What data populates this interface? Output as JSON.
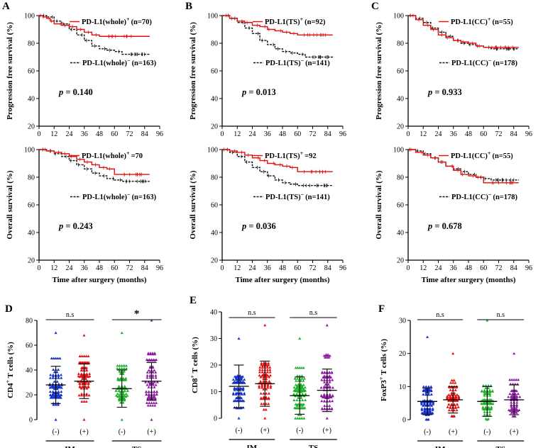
{
  "km_panels": [
    {
      "letter": "A",
      "x0": 55,
      "y0": 22,
      "w": 170,
      "h": 156,
      "pos_label": "PD-L1(whole)",
      "pos_n": "(n=70)",
      "neg_label": "PD-L1(whole)",
      "neg_n": "(n=163)",
      "p": "0.140",
      "ylabel": "Progression free survival (%)",
      "show_xlabel": false,
      "pos": [
        [
          0,
          100
        ],
        [
          3,
          99
        ],
        [
          6,
          98
        ],
        [
          9,
          96
        ],
        [
          12,
          94
        ],
        [
          18,
          93
        ],
        [
          24,
          92
        ],
        [
          30,
          90
        ],
        [
          36,
          88
        ],
        [
          42,
          86
        ],
        [
          48,
          85
        ],
        [
          88,
          85
        ]
      ],
      "neg": [
        [
          0,
          100
        ],
        [
          6,
          99
        ],
        [
          12,
          96
        ],
        [
          18,
          94
        ],
        [
          24,
          90
        ],
        [
          30,
          86
        ],
        [
          36,
          82
        ],
        [
          42,
          78
        ],
        [
          48,
          76
        ],
        [
          54,
          75
        ],
        [
          60,
          74
        ],
        [
          66,
          72
        ],
        [
          88,
          72
        ]
      ]
    },
    {
      "letter": "B",
      "x0": 313,
      "y0": 22,
      "w": 170,
      "h": 156,
      "pos_label": "PD-L1(TS)",
      "pos_n": "(n=92)",
      "neg_label": "PD-L1(TS)",
      "neg_n": "(n=141)",
      "p": "0.013",
      "ylabel": "Progression free survival (%)",
      "show_xlabel": false,
      "pos": [
        [
          0,
          100
        ],
        [
          6,
          98
        ],
        [
          12,
          96
        ],
        [
          18,
          95
        ],
        [
          24,
          93
        ],
        [
          30,
          92
        ],
        [
          36,
          90
        ],
        [
          42,
          89
        ],
        [
          48,
          88
        ],
        [
          54,
          87
        ],
        [
          60,
          86
        ],
        [
          88,
          86
        ]
      ],
      "neg": [
        [
          0,
          100
        ],
        [
          6,
          98
        ],
        [
          12,
          95
        ],
        [
          18,
          91
        ],
        [
          24,
          87
        ],
        [
          30,
          82
        ],
        [
          36,
          79
        ],
        [
          42,
          76
        ],
        [
          48,
          74
        ],
        [
          54,
          73
        ],
        [
          60,
          72
        ],
        [
          66,
          70
        ],
        [
          88,
          70
        ]
      ]
    },
    {
      "letter": "C",
      "x0": 575,
      "y0": 22,
      "w": 170,
      "h": 156,
      "pos_label": "PD-L1(CC)",
      "pos_n": "(n=55)",
      "neg_label": "PD-L1(CC)",
      "neg_n": "(n=178)",
      "p": "0.933",
      "ylabel": "Progression free survival (%)",
      "show_xlabel": false,
      "pos": [
        [
          0,
          100
        ],
        [
          6,
          97
        ],
        [
          12,
          93
        ],
        [
          18,
          90
        ],
        [
          24,
          86
        ],
        [
          30,
          84
        ],
        [
          36,
          82
        ],
        [
          42,
          81
        ],
        [
          48,
          80
        ],
        [
          54,
          78
        ],
        [
          60,
          77
        ],
        [
          88,
          77
        ]
      ],
      "neg": [
        [
          0,
          100
        ],
        [
          6,
          98
        ],
        [
          12,
          95
        ],
        [
          18,
          91
        ],
        [
          24,
          88
        ],
        [
          30,
          85
        ],
        [
          36,
          82
        ],
        [
          42,
          80
        ],
        [
          48,
          79
        ],
        [
          54,
          78
        ],
        [
          60,
          77
        ],
        [
          66,
          76
        ],
        [
          88,
          76
        ]
      ]
    },
    {
      "letter": "",
      "x0": 55,
      "y0": 211,
      "w": 170,
      "h": 156,
      "pos_label": "PD-L1(whole)",
      "pos_n": "=70",
      "neg_label": "PD-L1(whole)",
      "neg_n": "(n=163)",
      "p": "0.243",
      "ylabel": "Overall survival (%)",
      "show_xlabel": true,
      "pos": [
        [
          0,
          100
        ],
        [
          6,
          99
        ],
        [
          12,
          98
        ],
        [
          18,
          97
        ],
        [
          24,
          95
        ],
        [
          30,
          93
        ],
        [
          36,
          91
        ],
        [
          42,
          89
        ],
        [
          48,
          87
        ],
        [
          54,
          86
        ],
        [
          60,
          82
        ],
        [
          88,
          82
        ]
      ],
      "neg": [
        [
          0,
          100
        ],
        [
          6,
          99
        ],
        [
          12,
          97
        ],
        [
          18,
          95
        ],
        [
          24,
          92
        ],
        [
          30,
          89
        ],
        [
          36,
          86
        ],
        [
          42,
          83
        ],
        [
          48,
          81
        ],
        [
          54,
          79
        ],
        [
          60,
          78
        ],
        [
          66,
          77
        ],
        [
          88,
          77
        ]
      ]
    },
    {
      "letter": "",
      "x0": 313,
      "y0": 211,
      "w": 170,
      "h": 156,
      "pos_label": "PD-L1(TS)",
      "pos_n": "=92",
      "neg_label": "PD-L1(TS)",
      "neg_n": "(n=141)",
      "p": "0.036",
      "ylabel": "Overall survival (%)",
      "show_xlabel": true,
      "pos": [
        [
          0,
          100
        ],
        [
          6,
          99
        ],
        [
          12,
          98
        ],
        [
          18,
          96
        ],
        [
          24,
          94
        ],
        [
          30,
          92
        ],
        [
          36,
          90
        ],
        [
          42,
          89
        ],
        [
          48,
          88
        ],
        [
          54,
          87
        ],
        [
          60,
          84
        ],
        [
          88,
          84
        ]
      ],
      "neg": [
        [
          0,
          100
        ],
        [
          6,
          98
        ],
        [
          12,
          95
        ],
        [
          18,
          91
        ],
        [
          24,
          87
        ],
        [
          30,
          84
        ],
        [
          36,
          81
        ],
        [
          42,
          78
        ],
        [
          48,
          76
        ],
        [
          54,
          75
        ],
        [
          60,
          74
        ],
        [
          88,
          74
        ]
      ]
    },
    {
      "letter": "",
      "x0": 575,
      "y0": 211,
      "w": 170,
      "h": 156,
      "pos_label": "PD-L1(CC)",
      "pos_n": "(n=55)",
      "neg_label": "PD-L1(CC)",
      "neg_n": "(n=178)",
      "p": "0.678",
      "ylabel": "Overall survival (%)",
      "show_xlabel": true,
      "pos": [
        [
          0,
          100
        ],
        [
          6,
          98
        ],
        [
          12,
          96
        ],
        [
          18,
          94
        ],
        [
          24,
          91
        ],
        [
          30,
          88
        ],
        [
          36,
          85
        ],
        [
          42,
          82
        ],
        [
          48,
          81
        ],
        [
          54,
          80
        ],
        [
          60,
          76
        ],
        [
          88,
          76
        ]
      ],
      "neg": [
        [
          0,
          100
        ],
        [
          6,
          99
        ],
        [
          12,
          97
        ],
        [
          18,
          94
        ],
        [
          24,
          91
        ],
        [
          30,
          88
        ],
        [
          36,
          86
        ],
        [
          42,
          84
        ],
        [
          48,
          82
        ],
        [
          54,
          80
        ],
        [
          60,
          79
        ],
        [
          66,
          78
        ],
        [
          88,
          78
        ]
      ]
    }
  ],
  "km_axis": {
    "xmax": 96,
    "xticks": [
      0,
      12,
      24,
      36,
      48,
      60,
      72,
      84,
      96
    ],
    "yticks": [
      20,
      40,
      60,
      80,
      100
    ],
    "xlabel": "Time after surgery (months)"
  },
  "dot_panels": [
    {
      "letter": "D",
      "x0": 52,
      "y0": 452,
      "w": 190,
      "h": 140,
      "ymax": 80,
      "yticks": [
        0,
        20,
        40,
        60,
        80
      ],
      "ylabel": "CD4",
      "ylabel_sup": "+",
      "ylabel_rest": " T cells (%)",
      "groups": [
        {
          "label": "(-)",
          "color": "#1530c8",
          "mean": 28,
          "sd": 15,
          "min": 0,
          "max": 70
        },
        {
          "label": "(+)",
          "color": "#e01010",
          "mean": 31,
          "sd": 14,
          "min": 0,
          "max": 68
        },
        {
          "label": "(-)",
          "color": "#1fb02a",
          "mean": 25,
          "sd": 15,
          "min": 0,
          "max": 70
        },
        {
          "label": "(+)",
          "color": "#8a1a9e",
          "mean": 31,
          "sd": 15,
          "min": 0,
          "max": 80
        }
      ],
      "sig": [
        {
          "text": "n.s"
        },
        {
          "text": "*"
        }
      ]
    },
    {
      "letter": "E",
      "x0": 312,
      "y0": 440,
      "w": 175,
      "h": 150,
      "ymax": 40,
      "yticks": [
        0,
        10,
        20,
        30,
        40
      ],
      "ylabel": "CD8",
      "ylabel_sup": "+",
      "ylabel_rest": " T cells (%)",
      "groups": [
        {
          "label": "(-)",
          "color": "#1530c8",
          "mean": 12,
          "sd": 8,
          "min": 0,
          "max": 30
        },
        {
          "label": "(+)",
          "color": "#e01010",
          "mean": 13,
          "sd": 8.5,
          "min": 0,
          "max": 35
        },
        {
          "label": "(-)",
          "color": "#1fb02a",
          "mean": 8.5,
          "sd": 7,
          "min": 0,
          "max": 30
        },
        {
          "label": "(+)",
          "color": "#8a1a9e",
          "mean": 10.5,
          "sd": 8,
          "min": 0,
          "max": 35
        }
      ],
      "sig": [
        {
          "text": "n.s"
        },
        {
          "text": "n.s"
        }
      ]
    },
    {
      "letter": "F",
      "x0": 578,
      "y0": 452,
      "w": 172,
      "h": 140,
      "ymax": 30,
      "yticks": [
        0,
        10,
        20,
        30
      ],
      "ylabel": "FoxP3",
      "ylabel_sup": "+",
      "ylabel_rest": " T cells (%)",
      "groups": [
        {
          "label": "(-)",
          "color": "#1530c8",
          "mean": 5.5,
          "sd": 4,
          "min": 0,
          "max": 25
        },
        {
          "label": "(+)",
          "color": "#e01010",
          "mean": 6,
          "sd": 4,
          "min": 1,
          "max": 20
        },
        {
          "label": "(-)",
          "color": "#1fb02a",
          "mean": 5.5,
          "sd": 4.5,
          "min": 0,
          "max": 30
        },
        {
          "label": "(+)",
          "color": "#8a1a9e",
          "mean": 6,
          "sd": 4.5,
          "min": 1,
          "max": 20
        }
      ],
      "sig": [
        {
          "text": "n.s"
        },
        {
          "text": "n.s"
        }
      ]
    }
  ],
  "dot_group_labels": [
    "IM",
    "TS"
  ],
  "colors": {
    "pos": "#e01010",
    "neg": "#111111"
  }
}
